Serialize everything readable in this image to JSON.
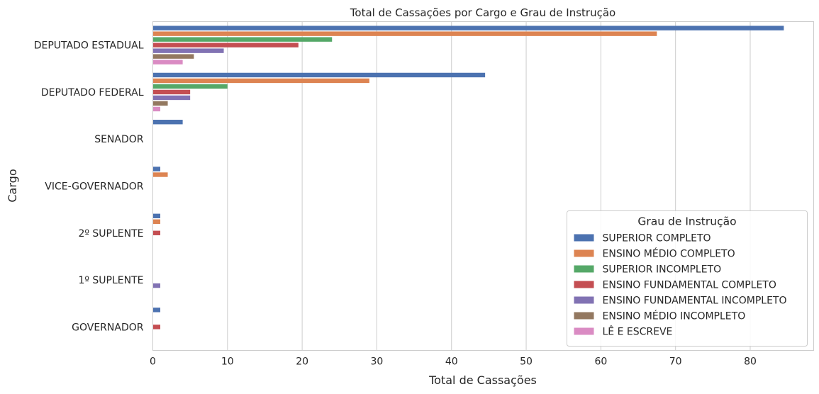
{
  "chart_data": {
    "type": "bar",
    "orientation": "horizontal",
    "title": "Total de Cassações por Cargo e Grau de Instrução",
    "xlabel": "Total de Cassações",
    "ylabel": "Cargo",
    "xlim": [
      0,
      88.5
    ],
    "xticks": [
      0,
      10,
      20,
      30,
      40,
      50,
      60,
      70,
      80
    ],
    "grid": "vertical",
    "legend_position": "bottom-right",
    "categories": [
      "DEPUTADO ESTADUAL",
      "DEPUTADO FEDERAL",
      "SENADOR",
      "VICE-GOVERNADOR",
      "2º SUPLENTE",
      "1º SUPLENTE",
      "GOVERNADOR"
    ],
    "legend_title": "Grau de Instrução",
    "series": [
      {
        "name": "SUPERIOR COMPLETO",
        "color": "#4c72b0",
        "values": [
          84.5,
          44.5,
          4,
          1,
          1,
          0,
          1
        ]
      },
      {
        "name": "ENSINO MÉDIO COMPLETO",
        "color": "#dd8452",
        "values": [
          67.5,
          29,
          0,
          2,
          1,
          0,
          0
        ]
      },
      {
        "name": "SUPERIOR INCOMPLETO",
        "color": "#55a868",
        "values": [
          24,
          10,
          0,
          0,
          0,
          0,
          0
        ]
      },
      {
        "name": "ENSINO FUNDAMENTAL COMPLETO",
        "color": "#c44e52",
        "values": [
          19.5,
          5,
          0,
          0,
          1,
          0,
          1
        ]
      },
      {
        "name": "ENSINO FUNDAMENTAL INCOMPLETO",
        "color": "#8172b3",
        "values": [
          9.5,
          5,
          0,
          0,
          0,
          1,
          0
        ]
      },
      {
        "name": "ENSINO MÉDIO INCOMPLETO",
        "color": "#937860",
        "values": [
          5.5,
          2,
          0,
          0,
          0,
          0,
          0
        ]
      },
      {
        "name": "LÊ E ESCREVE",
        "color": "#da8bc3",
        "values": [
          4,
          1,
          0,
          0,
          0,
          0,
          0
        ]
      }
    ]
  }
}
